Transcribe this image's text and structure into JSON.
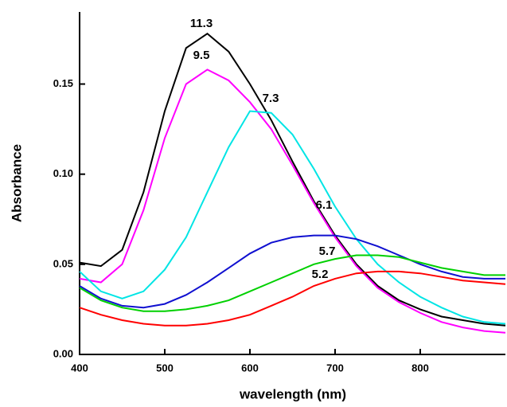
{
  "chart_data": {
    "type": "line",
    "x_label": "wavelength (nm)",
    "y_label": "Absorbance",
    "x": [
      400,
      425,
      450,
      475,
      500,
      525,
      550,
      575,
      600,
      625,
      650,
      675,
      700,
      725,
      750,
      775,
      800,
      825,
      850,
      875,
      900
    ],
    "series": [
      {
        "name": "11.3",
        "color": "#000000",
        "values": [
          0.051,
          0.049,
          0.058,
          0.09,
          0.135,
          0.17,
          0.178,
          0.168,
          0.15,
          0.13,
          0.107,
          0.085,
          0.066,
          0.05,
          0.038,
          0.03,
          0.025,
          0.021,
          0.019,
          0.017,
          0.016
        ]
      },
      {
        "name": "9.5",
        "color": "#ff00ff",
        "values": [
          0.042,
          0.04,
          0.05,
          0.08,
          0.12,
          0.15,
          0.158,
          0.152,
          0.14,
          0.125,
          0.105,
          0.084,
          0.065,
          0.049,
          0.037,
          0.029,
          0.023,
          0.018,
          0.015,
          0.013,
          0.012
        ]
      },
      {
        "name": "7.3",
        "color": "#00e5e5",
        "values": [
          0.046,
          0.035,
          0.031,
          0.035,
          0.047,
          0.065,
          0.09,
          0.115,
          0.135,
          0.134,
          0.122,
          0.103,
          0.082,
          0.064,
          0.05,
          0.04,
          0.032,
          0.026,
          0.021,
          0.018,
          0.017
        ]
      },
      {
        "name": "6.1",
        "color": "#1010d0",
        "values": [
          0.038,
          0.031,
          0.027,
          0.026,
          0.028,
          0.033,
          0.04,
          0.048,
          0.056,
          0.062,
          0.065,
          0.066,
          0.066,
          0.064,
          0.06,
          0.055,
          0.05,
          0.046,
          0.043,
          0.042,
          0.042
        ]
      },
      {
        "name": "5.7",
        "color": "#00d000",
        "values": [
          0.037,
          0.03,
          0.026,
          0.024,
          0.024,
          0.025,
          0.027,
          0.03,
          0.035,
          0.04,
          0.045,
          0.05,
          0.053,
          0.055,
          0.055,
          0.054,
          0.051,
          0.048,
          0.046,
          0.044,
          0.044
        ]
      },
      {
        "name": "5.2",
        "color": "#ff0000",
        "values": [
          0.026,
          0.022,
          0.019,
          0.017,
          0.016,
          0.016,
          0.017,
          0.019,
          0.022,
          0.027,
          0.032,
          0.038,
          0.042,
          0.045,
          0.046,
          0.046,
          0.045,
          0.043,
          0.041,
          0.04,
          0.039
        ]
      }
    ],
    "xlim": [
      400,
      900
    ],
    "xticks": [
      400,
      500,
      600,
      700,
      800
    ],
    "ylim": [
      0,
      0.19
    ],
    "yticks": [
      {
        "value": 0,
        "label": "0.00"
      },
      {
        "value": 0.05,
        "label": "0.05"
      },
      {
        "value": 0.1,
        "label": "0.10"
      },
      {
        "value": 0.15,
        "label": "0.15"
      }
    ]
  }
}
